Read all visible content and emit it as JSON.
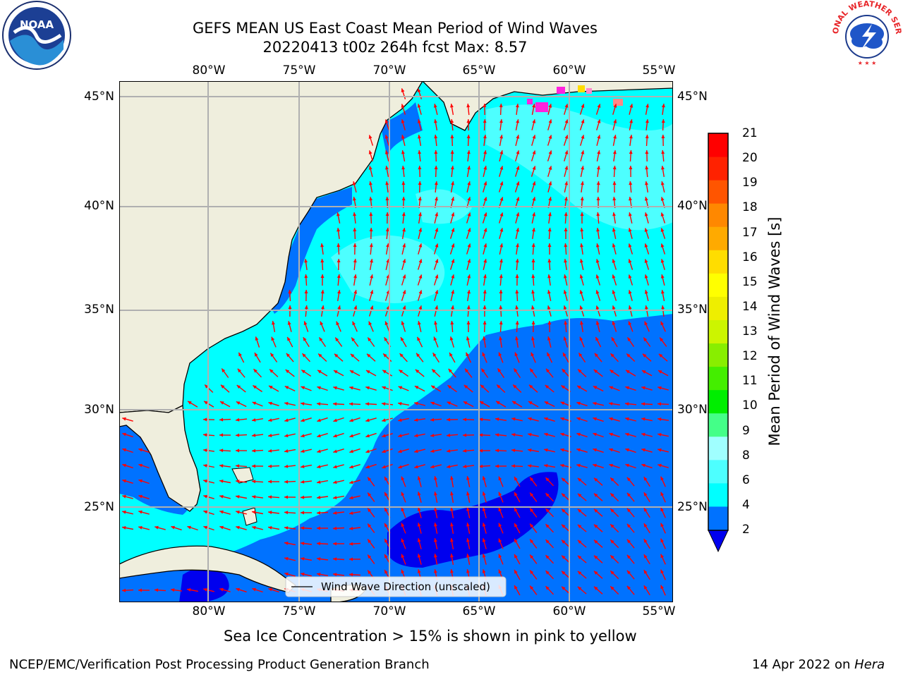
{
  "title": {
    "line1": "GEFS MEAN US East Coast Mean Period of Wind Waves",
    "line2": "20220413 t00z 264h fcst   Max: 8.57"
  },
  "map": {
    "lon_ticks": [
      "80°W",
      "75°W",
      "70°W",
      "65°W",
      "60°W",
      "55°W"
    ],
    "lat_ticks": [
      "45°N",
      "40°N",
      "35°N",
      "30°N",
      "25°N"
    ],
    "legend_label": "Wind Wave Direction (unscaled)",
    "colors": {
      "land": "#efeedd",
      "ocean_low": "#0072ff",
      "ocean_mid": "#00ffff",
      "ocean_high": "#4dffff",
      "ocean_deep": "#0000ee",
      "arrow": "#ff0000",
      "ice": "#ff22dd"
    }
  },
  "colorbar": {
    "label": "Mean Period of Wind Waves [s]",
    "ticks": [
      "2",
      "4",
      "6",
      "8",
      "9",
      "10",
      "11",
      "12",
      "13",
      "14",
      "15",
      "16",
      "17",
      "18",
      "19",
      "20",
      "21"
    ],
    "colors": [
      "#0072ff",
      "#00ffff",
      "#4dffff",
      "#a0ffff",
      "#44ff88",
      "#00ee00",
      "#44ee00",
      "#88ee00",
      "#ccf500",
      "#eeee00",
      "#ffff00",
      "#ffdd00",
      "#ffaa00",
      "#ff8800",
      "#ff5500",
      "#ff2200",
      "#ff0000"
    ],
    "under_color": "#0000ee"
  },
  "subtitle": "Sea Ice Concentration > 15% is shown in pink to yellow",
  "footer": {
    "left": "NCEP/EMC/Verification Post Processing Product Generation Branch",
    "right_date": "14 Apr 2022 on ",
    "right_host": "Hera"
  },
  "logos": {
    "noaa": "NOAA",
    "nws": "NATIONAL WEATHER SERVICE"
  }
}
